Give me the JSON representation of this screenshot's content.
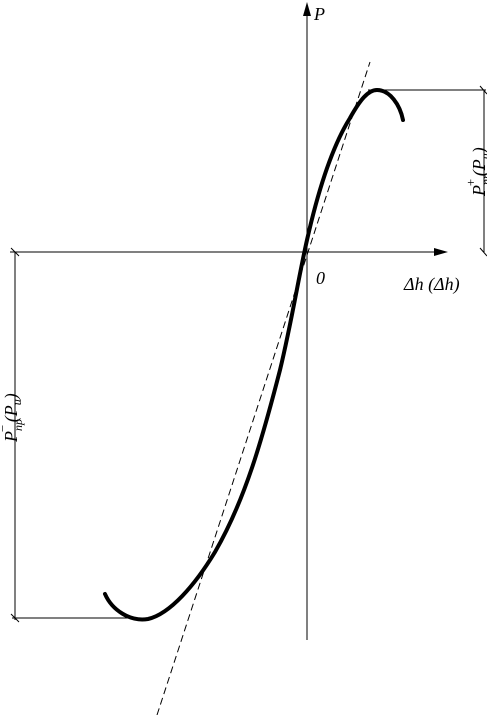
{
  "labels": {
    "axis_p": "P",
    "origin": "0",
    "axis_dh": "Δh (Δh)",
    "p_plus": {
      "base": "P",
      "sub": "пр",
      "sup": "+",
      "arg": "(P",
      "arg_sub": "u",
      "close": ")"
    },
    "p_minus": {
      "base": "P",
      "sub": "пр",
      "sup": "−",
      "arg": "(P",
      "arg_sub": "u",
      "close": ")"
    }
  }
}
